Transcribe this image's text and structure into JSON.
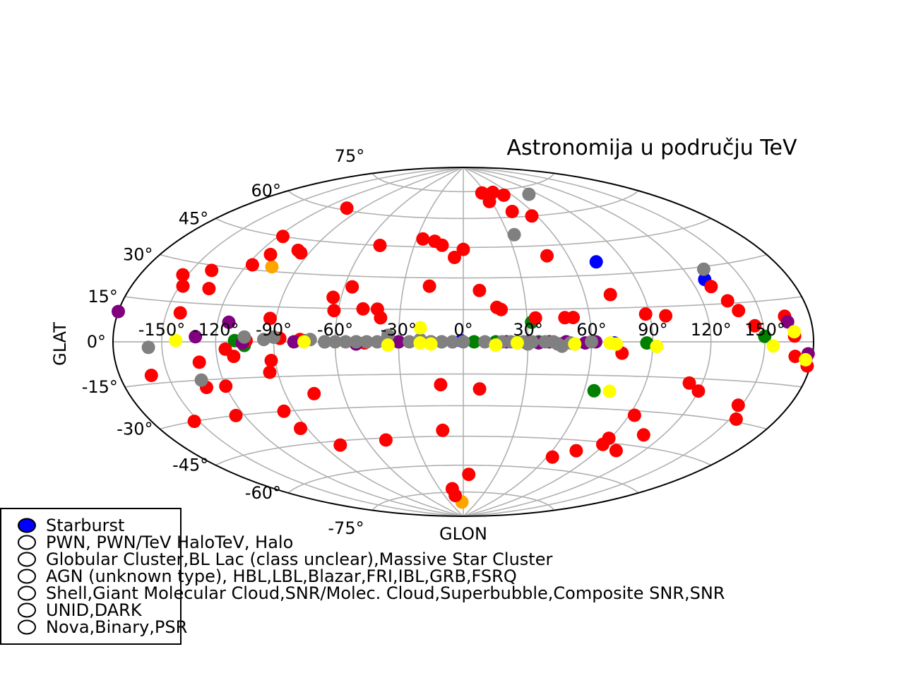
{
  "chart_data": {
    "type": "scatter",
    "projection": "hammer",
    "title": "Astronomija u području TeV",
    "xlabel": "GLON",
    "ylabel": "GLAT",
    "xlim": [
      -180,
      180
    ],
    "ylim": [
      -90,
      90
    ],
    "grid": true,
    "lon_ticks": [
      -150,
      -120,
      -90,
      -60,
      -30,
      0,
      30,
      60,
      90,
      120,
      150
    ],
    "lon_tick_labels": [
      "-150°",
      "-120°",
      "-90°",
      "-60°",
      "-30°",
      "0°",
      "30°",
      "60°",
      "90°",
      "120°",
      "150°"
    ],
    "lat_ticks": [
      -75,
      -60,
      -45,
      -30,
      -15,
      0,
      15,
      30,
      45,
      60,
      75
    ],
    "lat_tick_labels": [
      "-75°",
      "-60°",
      "-45°",
      "-30°",
      "-15°",
      "0°",
      "15°",
      "30°",
      "45°",
      "60°",
      "75°"
    ],
    "legend_position": "lower-left",
    "legend": [
      {
        "label": "Starburst",
        "color": "#0000ff",
        "filled": true
      },
      {
        "label": "PWN, PWN/TeV HaloTeV, Halo",
        "color": "#008000",
        "filled": false
      },
      {
        "label": "Globular Cluster,BL Lac (class unclear),Massive Star Cluster",
        "color": "#ffa500",
        "filled": false
      },
      {
        "label": "AGN (unknown type), HBL,LBL,Blazar,FRI,IBL,GRB,FSRQ",
        "color": "#ff0000",
        "filled": false
      },
      {
        "label": "Shell,Giant Molecular Cloud,SNR/Molec. Cloud,Superbubble,Composite SNR,SNR",
        "color": "#800080",
        "filled": false
      },
      {
        "label": "UNID,DARK",
        "color": "#808080",
        "filled": false
      },
      {
        "label": "Nova,Binary,PSR",
        "color": "#ffff00",
        "filled": false
      }
    ],
    "series": [
      {
        "name": "Starburst",
        "color": "#0000ff",
        "points": [
          [
            -1,
            0.5
          ],
          [
            74,
            36
          ],
          [
            128,
            25
          ],
          [
            71,
            -0.5
          ]
        ]
      },
      {
        "name": "PWN, PWN/TeV HaloTeV, Halo",
        "color": "#008000",
        "points": [
          [
            -110,
            0.5
          ],
          [
            -105,
            -1.5
          ],
          [
            -75,
            0.5
          ],
          [
            -65,
            0
          ],
          [
            -50,
            0
          ],
          [
            -30,
            0
          ],
          [
            -20,
            0
          ],
          [
            -10,
            0
          ],
          [
            5,
            0
          ],
          [
            15,
            0
          ],
          [
            25,
            -0.3
          ],
          [
            32,
            9
          ],
          [
            35,
            0
          ],
          [
            40,
            0
          ],
          [
            48,
            0
          ],
          [
            52,
            -1
          ],
          [
            65,
            -22
          ],
          [
            87,
            -0.5
          ],
          [
            150,
            2
          ]
        ]
      },
      {
        "name": "Globular Cluster,BL Lac (class unclear),Massive Star Cluster",
        "color": "#ffa500",
        "points": [
          [
            -105,
            32
          ],
          [
            -3,
            -81
          ]
        ]
      },
      {
        "name": "AGN (unknown type), HBL,LBL,Blazar,FRI,IBL,GRB,FSRQ",
        "color": "#ff0000",
        "points": [
          [
            25,
            74
          ],
          [
            34,
            73
          ],
          [
            40,
            74
          ],
          [
            50,
            72
          ],
          [
            28,
            69
          ],
          [
            43,
            63
          ],
          [
            56,
            60
          ],
          [
            -103,
            61
          ],
          [
            -117,
            45
          ],
          [
            -112,
            37
          ],
          [
            -117,
            32
          ],
          [
            -138,
            28
          ],
          [
            -153,
            25
          ],
          [
            -148,
            21
          ],
          [
            -132,
            21
          ],
          [
            -142,
            11
          ],
          [
            -98,
            40
          ],
          [
            -95,
            39
          ],
          [
            -51,
            45
          ],
          [
            -26,
            49
          ],
          [
            -18,
            48
          ],
          [
            -13,
            46
          ],
          [
            0,
            44
          ],
          [
            -5,
            40
          ],
          [
            48,
            40
          ],
          [
            -17,
            26
          ],
          [
            8,
            24
          ],
          [
            -64,
            20
          ],
          [
            -56,
            25
          ],
          [
            -62,
            14
          ],
          [
            -48,
            15
          ],
          [
            -41,
            15
          ],
          [
            -39,
            11
          ],
          [
            -93,
            10
          ],
          [
            16,
            16
          ],
          [
            18,
            15
          ],
          [
            34,
            11
          ],
          [
            48,
            11
          ],
          [
            52,
            11
          ],
          [
            73,
            21
          ],
          [
            88,
            12
          ],
          [
            98,
            11
          ],
          [
            129,
            22
          ],
          [
            134,
            16
          ],
          [
            138,
            12
          ],
          [
            145,
            6
          ],
          [
            164,
            9
          ],
          [
            168,
            2
          ],
          [
            169,
            -5
          ],
          [
            178,
            -8
          ],
          [
            -104,
            0.5
          ],
          [
            -90,
            2
          ],
          [
            -87,
            1.5
          ],
          [
            -77,
            1
          ],
          [
            -46,
            -0.5
          ],
          [
            -115,
            -3
          ],
          [
            -111,
            -6
          ],
          [
            -130,
            -8
          ],
          [
            -92,
            -8
          ],
          [
            -160,
            -12
          ],
          [
            -94,
            -13
          ],
          [
            -131,
            -18
          ],
          [
            -120,
            -18
          ],
          [
            -75,
            -23
          ],
          [
            -11,
            -20
          ],
          [
            8,
            -22
          ],
          [
            -153,
            -30
          ],
          [
            -125,
            -30
          ],
          [
            -96,
            -30
          ],
          [
            -94,
            -38
          ],
          [
            -79,
            -47
          ],
          [
            -48,
            -46
          ],
          [
            -12,
            -42
          ],
          [
            5,
            -65
          ],
          [
            -14,
            -73
          ],
          [
            -13,
            -77
          ],
          [
            64,
            -54
          ],
          [
            76,
            -50
          ],
          [
            89,
            -46
          ],
          [
            89,
            -43
          ],
          [
            93,
            -32
          ],
          [
            102,
            -48
          ],
          [
            108,
            -40
          ],
          [
            120,
            -20
          ],
          [
            113,
            -17
          ],
          [
            148,
            -24
          ],
          [
            154,
            -29
          ],
          [
            75,
            -5
          ]
        ]
      },
      {
        "name": "Shell,Giant Molecular Cloud,SNR/Molec. Cloud,Superbubble,Composite SNR,SNR",
        "color": "#800080",
        "points": [
          [
            -180,
            10
          ],
          [
            -131,
            2
          ],
          [
            -114,
            8
          ],
          [
            -106,
            -0.5
          ],
          [
            -80,
            0
          ],
          [
            -50,
            -1
          ],
          [
            -30,
            0
          ],
          [
            -15,
            0
          ],
          [
            -5,
            0
          ],
          [
            20,
            0
          ],
          [
            30,
            0
          ],
          [
            35,
            -0.5
          ],
          [
            40,
            0
          ],
          [
            45,
            -1
          ],
          [
            48,
            0
          ],
          [
            57,
            -0.5
          ],
          [
            62,
            0
          ],
          [
            165,
            7
          ],
          [
            177,
            -4
          ]
        ]
      },
      {
        "name": "UNID,DARK",
        "color": "#808080",
        "points": [
          [
            34,
            51
          ],
          [
            80,
            71
          ],
          [
            132,
            29
          ],
          [
            -105,
            2
          ],
          [
            -95,
            1
          ],
          [
            -90,
            2
          ],
          [
            -72,
            1
          ],
          [
            -65,
            0
          ],
          [
            -55,
            0
          ],
          [
            -45,
            0
          ],
          [
            -40,
            0
          ],
          [
            -35,
            3
          ],
          [
            -25,
            0
          ],
          [
            -20,
            1
          ],
          [
            -15,
            0
          ],
          [
            -10,
            0
          ],
          [
            -5,
            0
          ],
          [
            0,
            0
          ],
          [
            10,
            0
          ],
          [
            18,
            0
          ],
          [
            22,
            0
          ],
          [
            28,
            0
          ],
          [
            32,
            0
          ],
          [
            38,
            0
          ],
          [
            42,
            0
          ],
          [
            44,
            -1
          ],
          [
            46,
            -2
          ],
          [
            50,
            -0.5
          ],
          [
            -158,
            -2
          ],
          [
            -132,
            -15
          ],
          [
            -50,
            0
          ],
          [
            30,
            -1
          ],
          [
            60,
            0
          ],
          [
            -60,
            0
          ]
        ]
      },
      {
        "name": "Nova,Binary,PSR",
        "color": "#ffff00",
        "points": [
          [
            -142,
            0.5
          ],
          [
            -75,
            0
          ],
          [
            -35,
            -1.5
          ],
          [
            -20,
            6.5
          ],
          [
            -20,
            -0.5
          ],
          [
            -15,
            -1
          ],
          [
            15,
            -1.5
          ],
          [
            25,
            -0.5
          ],
          [
            52,
            -1
          ],
          [
            69,
            -0.5
          ],
          [
            72,
            -1
          ],
          [
            73,
            -22
          ],
          [
            92,
            -2
          ],
          [
            155,
            -1.5
          ],
          [
            168,
            3.5
          ],
          [
            176,
            -6
          ]
        ]
      }
    ]
  }
}
